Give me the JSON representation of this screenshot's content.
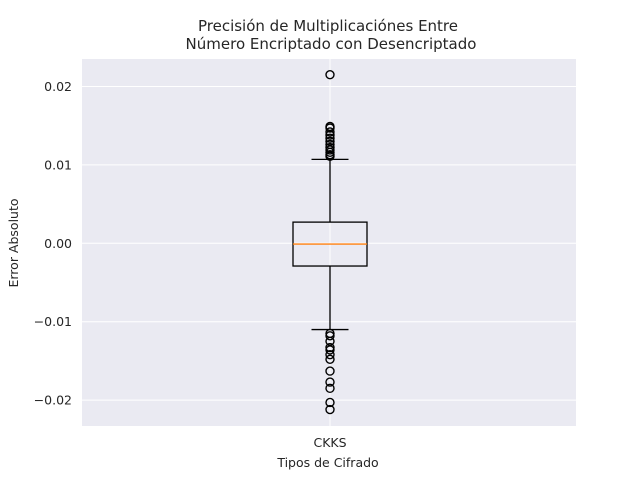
{
  "chart_data": {
    "type": "boxplot",
    "title": [
      "Precisión de Multiplicaciónes Entre",
      "Número Encriptado con Desencriptado"
    ],
    "xlabel": "Tipos de Cifrado",
    "ylabel": "Error Absoluto",
    "ylim": [
      -0.0233,
      0.0235
    ],
    "yticks": [
      0.02,
      0.01,
      0.0,
      -0.01,
      -0.02
    ],
    "ytick_labels": [
      "0.02",
      "0.01",
      "0.00",
      "−0.01",
      "−0.02"
    ],
    "categories": [
      "CKKS"
    ],
    "grid": true,
    "boxes": [
      {
        "name": "CKKS",
        "q1": -0.0029,
        "median": -0.0001,
        "q3": 0.0027,
        "whisker_low": -0.011,
        "whisker_high": 0.0107,
        "outliers": [
          0.0215,
          0.0149,
          0.0147,
          0.0142,
          0.0138,
          0.0134,
          0.013,
          0.0126,
          0.0122,
          0.0119,
          0.0116,
          0.0113,
          0.0111,
          -0.0115,
          -0.0118,
          -0.0125,
          -0.0133,
          -0.0136,
          -0.0142,
          -0.0148,
          -0.0163,
          -0.0177,
          -0.0185,
          -0.0203,
          -0.0212
        ]
      }
    ],
    "colors": {
      "plot_background": "#eaeaf2",
      "grid": "#ffffff",
      "box": "#000000",
      "median": "#ff7f0e"
    }
  }
}
